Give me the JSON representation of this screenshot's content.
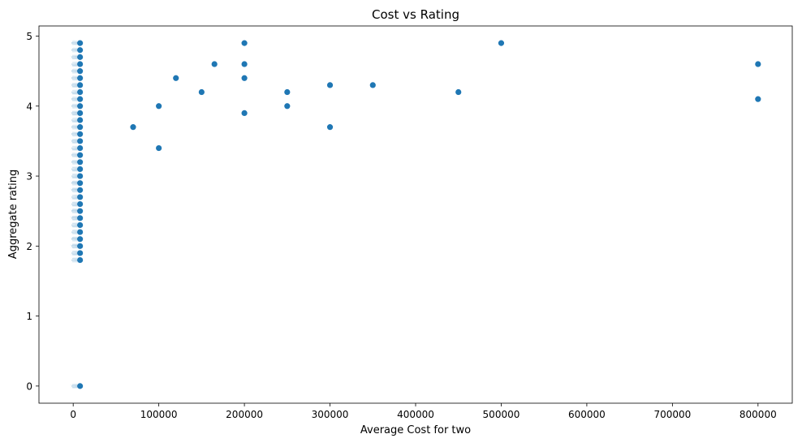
{
  "chart_data": {
    "type": "scatter",
    "title": "Cost vs Rating",
    "xlabel": "Average Cost for two",
    "ylabel": "Aggregate rating",
    "xlim": [
      -40000,
      840000
    ],
    "ylim": [
      -0.245,
      5.145
    ],
    "xticks": [
      0,
      100000,
      200000,
      300000,
      400000,
      500000,
      600000,
      700000,
      800000
    ],
    "yticks": [
      0,
      1,
      2,
      3,
      4,
      5
    ],
    "grid": false,
    "legend": "none",
    "marker_color": "#1f77b4",
    "points": [
      {
        "x": 70000,
        "y": 3.7
      },
      {
        "x": 100000,
        "y": 4.0
      },
      {
        "x": 100000,
        "y": 3.4
      },
      {
        "x": 120000,
        "y": 4.4
      },
      {
        "x": 150000,
        "y": 4.2
      },
      {
        "x": 165000,
        "y": 4.6
      },
      {
        "x": 200000,
        "y": 4.9
      },
      {
        "x": 200000,
        "y": 4.6
      },
      {
        "x": 200000,
        "y": 4.4
      },
      {
        "x": 200000,
        "y": 3.9
      },
      {
        "x": 250000,
        "y": 4.2
      },
      {
        "x": 250000,
        "y": 4.0
      },
      {
        "x": 300000,
        "y": 4.3
      },
      {
        "x": 300000,
        "y": 3.7
      },
      {
        "x": 350000,
        "y": 4.3
      },
      {
        "x": 450000,
        "y": 4.2
      },
      {
        "x": 500000,
        "y": 4.9
      },
      {
        "x": 800000,
        "y": 4.6
      },
      {
        "x": 800000,
        "y": 4.1
      }
    ],
    "cluster_x": [
      0,
      500,
      1000,
      1500,
      2000,
      3000,
      4000,
      5000,
      6000,
      7000,
      8000
    ],
    "cluster_y": [
      0,
      1.8,
      1.9,
      2.0,
      2.1,
      2.2,
      2.3,
      2.4,
      2.5,
      2.6,
      2.7,
      2.8,
      2.9,
      3.0,
      3.1,
      3.2,
      3.3,
      3.4,
      3.5,
      3.6,
      3.7,
      3.8,
      3.9,
      4.0,
      4.1,
      4.2,
      4.3,
      4.4,
      4.5,
      4.6,
      4.7,
      4.8,
      4.9
    ]
  }
}
